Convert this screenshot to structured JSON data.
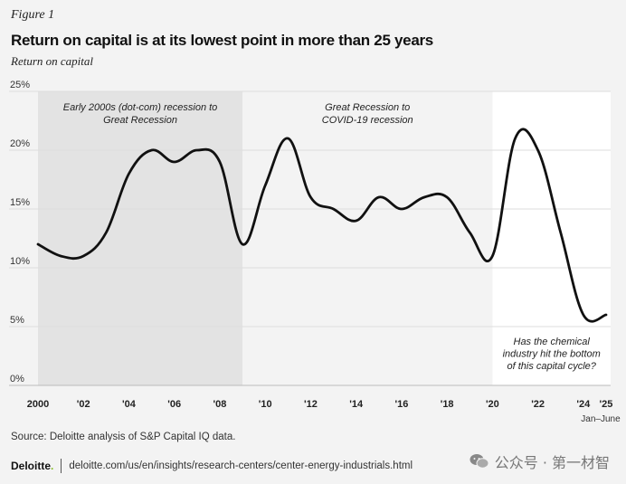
{
  "figure_label": "Figure 1",
  "title": "Return on capital is at its lowest point in more than 25 years",
  "subtitle": "Return on capital",
  "source": "Source: Deloitte analysis of S&P Capital IQ data.",
  "footer": {
    "brand": "Deloitte",
    "brand_dot": ".",
    "url": "deloitte.com/us/en/insights/research-centers/center-energy-industrials.html"
  },
  "watermark": {
    "text": "公众号 · 第一材智",
    "icon": "wechat-icon"
  },
  "colors": {
    "background": "#f3f3f3",
    "shade": "#e3e3e3",
    "highlight": "#ffffff",
    "line": "#111111",
    "grid": "#dcdcdc",
    "brand_green": "#86bc25"
  },
  "chart_data": {
    "type": "line",
    "title": "Return on capital is at its lowest point in more than 25 years",
    "ylabel": "Return on capital",
    "xlabel": "",
    "xlim": [
      2000,
      2025.2
    ],
    "ylim": [
      0,
      25
    ],
    "yticks": [
      0,
      5,
      10,
      15,
      20,
      25
    ],
    "ytick_labels": [
      "0%",
      "5%",
      "10%",
      "15%",
      "20%",
      "25%"
    ],
    "xticks": [
      2000,
      2002,
      2004,
      2006,
      2008,
      2010,
      2012,
      2014,
      2016,
      2018,
      2020,
      2022,
      2024,
      2025
    ],
    "xtick_labels": [
      "2000",
      "'02",
      "'04",
      "'06",
      "'08",
      "'10",
      "'12",
      "'14",
      "'16",
      "'18",
      "'20",
      "'22",
      "'24",
      "'25"
    ],
    "xtick_sublabel": {
      "x": 2025,
      "text": "Jan–June"
    },
    "grid": true,
    "series": [
      {
        "name": "Return on capital",
        "x": [
          2000,
          2001,
          2002,
          2003,
          2004,
          2005,
          2006,
          2007,
          2008,
          2009,
          2010,
          2011,
          2012,
          2013,
          2014,
          2015,
          2016,
          2017,
          2018,
          2019,
          2020,
          2021,
          2022,
          2023,
          2024,
          2025
        ],
        "values": [
          12,
          11,
          11,
          13,
          18,
          20,
          19,
          20,
          19,
          12,
          17,
          21,
          16,
          15,
          14,
          16,
          15,
          16,
          16,
          13,
          11,
          21,
          20,
          13,
          6,
          6
        ]
      }
    ],
    "regions": [
      {
        "from": 2000,
        "to": 2009,
        "label_lines": [
          "Early 2000s (dot-com) recession to",
          "Great Recession"
        ],
        "fill": "#e3e3e3"
      },
      {
        "from": 2009,
        "to": 2020,
        "label_lines": [
          "Great Recession to",
          "COVID-19 recession"
        ],
        "fill": "#f3f3f3"
      },
      {
        "from": 2020,
        "to": 2025.2,
        "label_lines": [],
        "fill": "#ffffff"
      }
    ],
    "annotations": [
      {
        "x": 2022.6,
        "lines": [
          "Has the chemical",
          "industry hit the bottom",
          "of this capital cycle?"
        ]
      }
    ]
  }
}
